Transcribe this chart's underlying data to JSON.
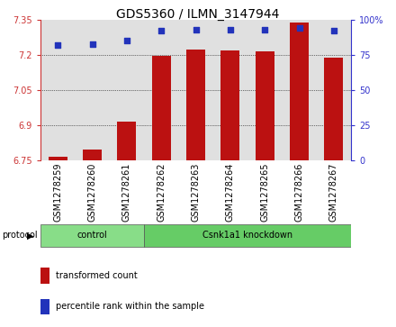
{
  "title": "GDS5360 / ILMN_3147944",
  "samples": [
    "GSM1278259",
    "GSM1278260",
    "GSM1278261",
    "GSM1278262",
    "GSM1278263",
    "GSM1278264",
    "GSM1278265",
    "GSM1278266",
    "GSM1278267"
  ],
  "transformed_count": [
    6.765,
    6.795,
    6.915,
    7.195,
    7.225,
    7.22,
    7.215,
    7.34,
    7.19
  ],
  "percentile_rank": [
    82,
    83,
    85,
    92,
    93,
    93,
    93,
    94,
    92
  ],
  "ylim": [
    6.75,
    7.35
  ],
  "yticks": [
    6.75,
    6.9,
    7.05,
    7.2,
    7.35
  ],
  "ytick_labels": [
    "6.75",
    "6.9",
    "7.05",
    "7.2",
    "7.35"
  ],
  "right_ylim": [
    0,
    100
  ],
  "right_yticks": [
    0,
    25,
    50,
    75,
    100
  ],
  "right_ytick_labels": [
    "0",
    "25",
    "50",
    "75",
    "100%"
  ],
  "bar_color": "#bb1111",
  "dot_color": "#2233bb",
  "bar_bottom": 6.75,
  "groups": [
    {
      "label": "control",
      "indices": [
        0,
        1,
        2
      ],
      "color": "#88dd88"
    },
    {
      "label": "Csnk1a1 knockdown",
      "indices": [
        3,
        4,
        5,
        6,
        7,
        8
      ],
      "color": "#66cc66"
    }
  ],
  "protocol_label": "protocol",
  "legend_bar_label": "transformed count",
  "legend_dot_label": "percentile rank within the sample",
  "title_fontsize": 10,
  "tick_fontsize": 7,
  "label_fontsize": 7,
  "axis_color_left": "#cc3333",
  "axis_color_right": "#3333cc",
  "bg_color": "#e0e0e0",
  "bar_width": 0.55
}
